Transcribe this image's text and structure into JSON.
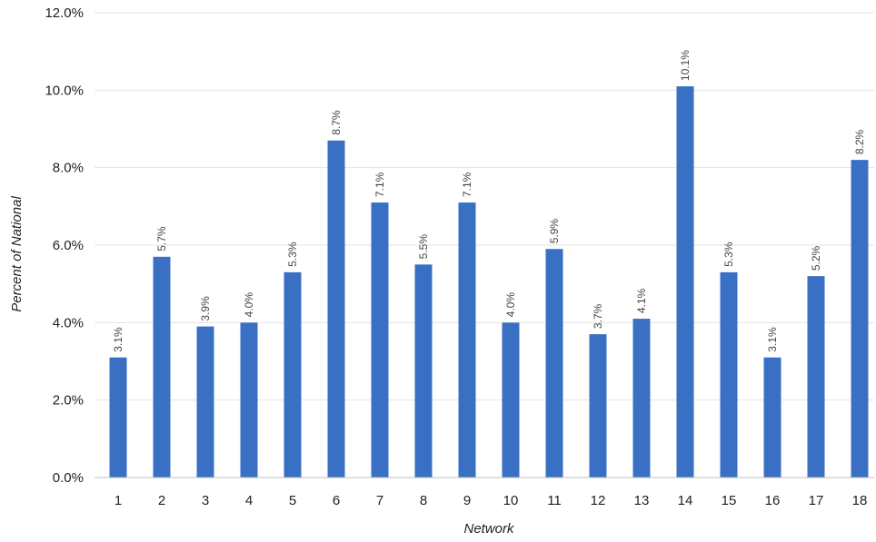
{
  "chart_data": {
    "type": "bar",
    "title": "",
    "xlabel": "Network",
    "ylabel": "Percent of National",
    "categories": [
      "1",
      "2",
      "3",
      "4",
      "5",
      "6",
      "7",
      "8",
      "9",
      "10",
      "11",
      "12",
      "13",
      "14",
      "15",
      "16",
      "17",
      "18"
    ],
    "values": [
      3.1,
      5.7,
      3.9,
      4.0,
      5.3,
      8.7,
      7.1,
      5.5,
      7.1,
      4.0,
      5.9,
      3.7,
      4.1,
      10.1,
      5.3,
      3.1,
      5.2,
      8.2
    ],
    "data_labels": [
      "3.1%",
      "5.7%",
      "3.9%",
      "4.0%",
      "5.3%",
      "8.7%",
      "7.1%",
      "5.5%",
      "7.1%",
      "4.0%",
      "5.9%",
      "3.7%",
      "4.1%",
      "10.1%",
      "5.3%",
      "3.1%",
      "5.2%",
      "8.2%"
    ],
    "ylim": [
      0,
      12
    ],
    "yticks": [
      0,
      2,
      4,
      6,
      8,
      10,
      12
    ],
    "ytick_labels": [
      "0.0%",
      "2.0%",
      "4.0%",
      "6.0%",
      "8.0%",
      "10.0%",
      "12.0%"
    ],
    "grid": true,
    "legend": "none",
    "bar_color": "#3a70c4"
  }
}
